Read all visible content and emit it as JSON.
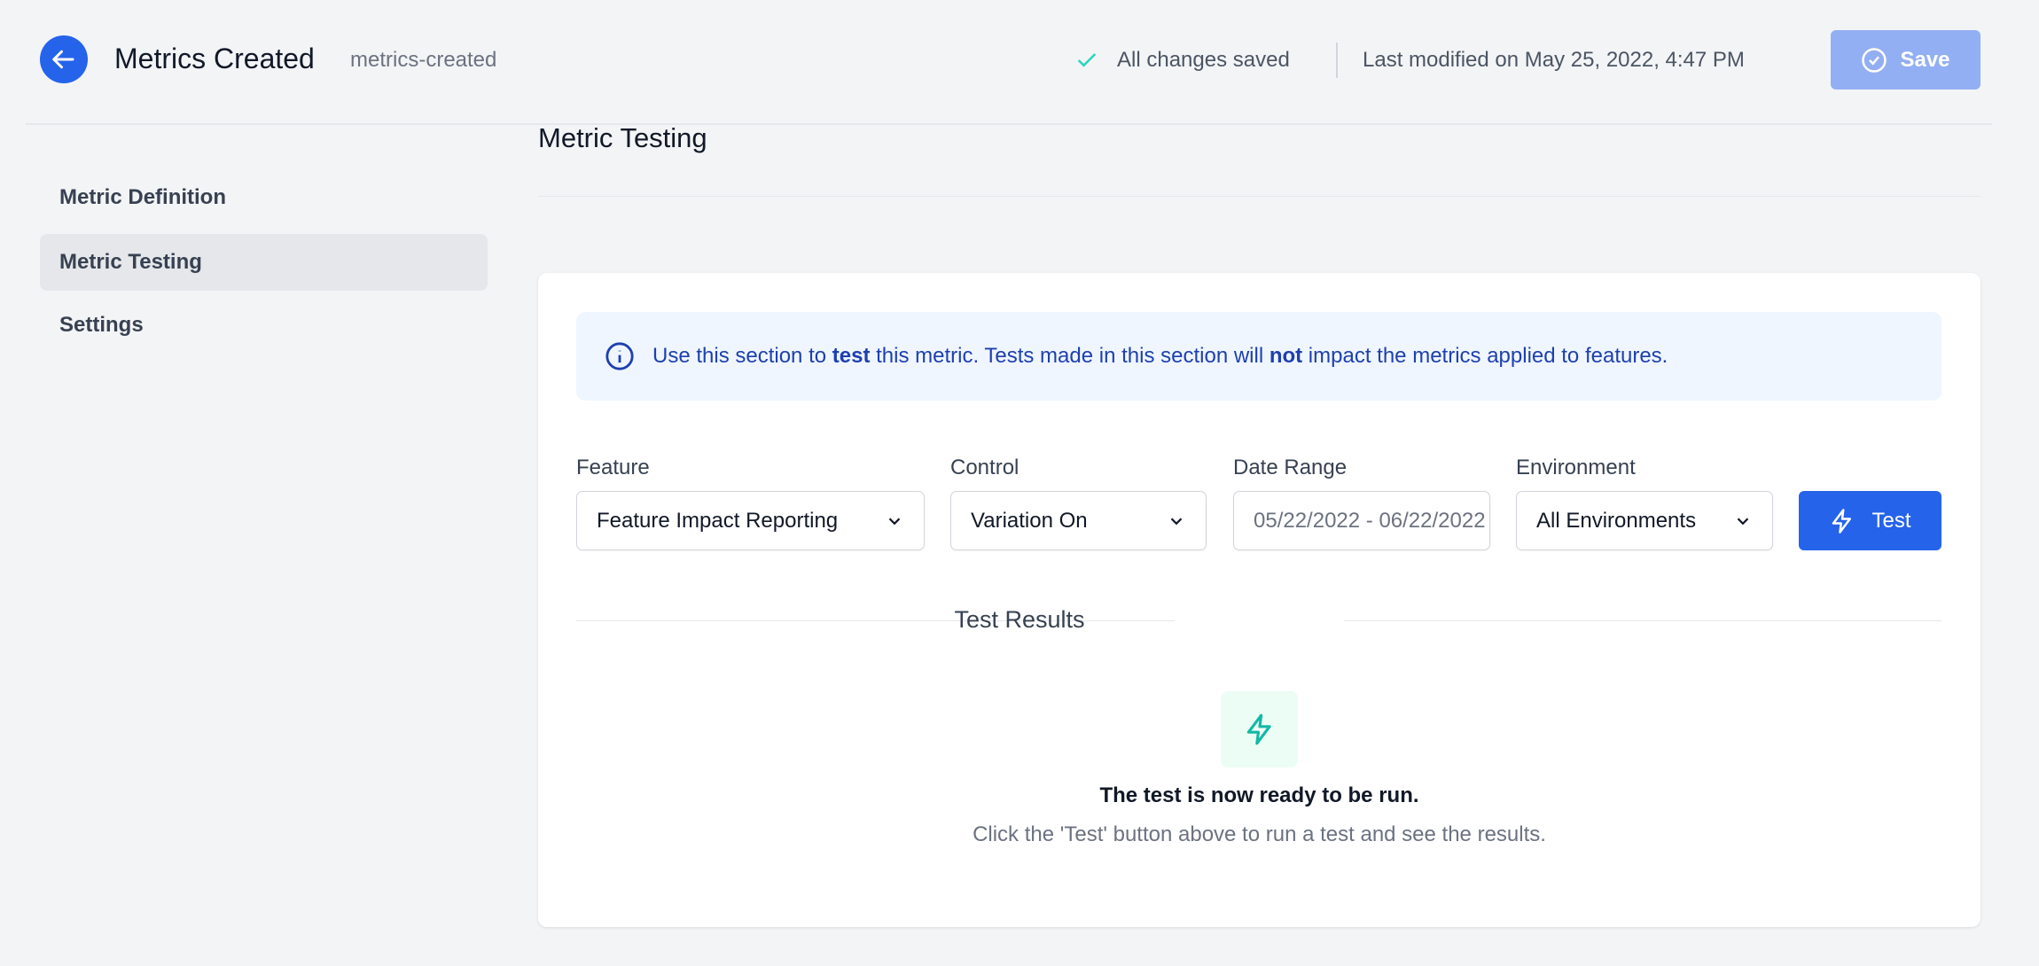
{
  "header": {
    "title": "Metrics Created",
    "slug": "metrics-created",
    "status": "All changes saved",
    "last_modified": "Last modified on May 25, 2022, 4:47 PM",
    "save_label": "Save"
  },
  "sidebar": {
    "items": [
      {
        "label": "Metric Definition"
      },
      {
        "label": "Metric Testing",
        "active": true
      },
      {
        "label": "Settings"
      }
    ]
  },
  "main": {
    "title": "Metric Testing",
    "info": {
      "pre": "Use this section to ",
      "b1": "test",
      "mid": " this metric. Tests made in this section will ",
      "b2": "not",
      "post": " impact the metrics applied to features."
    },
    "form": {
      "feature_label": "Feature",
      "feature_value": "Feature Impact Reporting",
      "control_label": "Control",
      "control_value": "Variation On",
      "date_label": "Date Range",
      "date_value": "05/22/2022 - 06/22/2022",
      "env_label": "Environment",
      "env_value": "All Environments",
      "test_label": "Test"
    },
    "results": {
      "title": "Test Results",
      "ready": "The test is now ready to be run.",
      "hint": "Click the 'Test' button above to run a test and see the results."
    }
  },
  "colors": {
    "accent": "#2563eb",
    "save_disabled": "#93aff3",
    "success": "#14b8a6",
    "info_bg": "#eff6ff",
    "info_text": "#1e40af"
  }
}
